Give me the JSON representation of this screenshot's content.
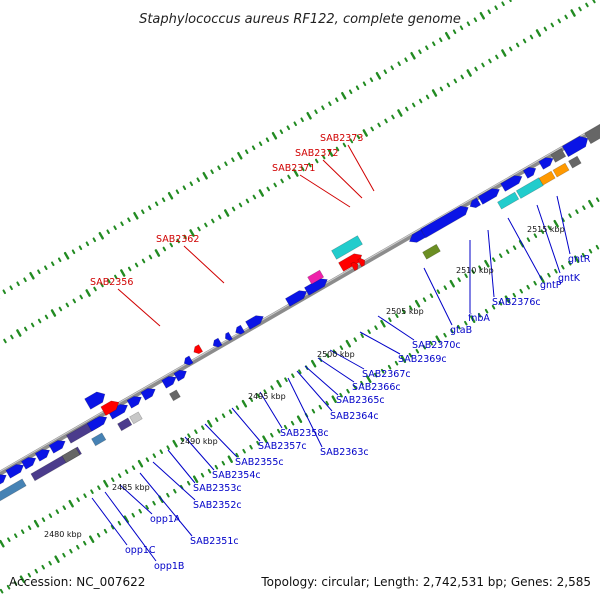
{
  "title": "Staphylococcus aureus RF122, complete genome",
  "footer": {
    "accession": "Accession: NC_007622",
    "topology": "Topology: circular; Length: 2,742,531 bp; Genes: 2,585"
  },
  "colors": {
    "backbone": "#8c8c8c",
    "tick": "#228b22",
    "gene_blue": "#0a14e6",
    "red": "#ff0000",
    "cyan": "#22cccc",
    "magenta": "#ee22aa",
    "olive": "#6b8e23",
    "orange": "#ff9900",
    "gray": "#666666",
    "steel": "#4682b4",
    "indigo": "#4b3c8c",
    "label_red": "#d00000",
    "label_blue": "#0000c8"
  },
  "scale": {
    "ticks": [
      "2480 kbp",
      "2485 kbp",
      "2490 kbp",
      "2495 kbp",
      "2500 kbp",
      "2505 kbp",
      "2510 kbp",
      "2515 kbp"
    ]
  },
  "labels_outer": [
    "SAB2356",
    "SAB2362",
    "SAB2371",
    "SAB2372",
    "SAB2373"
  ],
  "labels_inner": [
    "opp1C",
    "opp1B",
    "opp1A",
    "SAB2351c",
    "SAB2352c",
    "SAB2353c",
    "SAB2354c",
    "SAB2355c",
    "SAB2357c",
    "SAB2358c",
    "SAB2363c",
    "SAB2364c",
    "SAB2365c",
    "SAB2366c",
    "SAB2367c",
    "SAB2369c",
    "SAB2370c",
    "gtaB",
    "fnbA",
    "SAB2376c",
    "gntP",
    "gntK",
    "gntR"
  ]
}
